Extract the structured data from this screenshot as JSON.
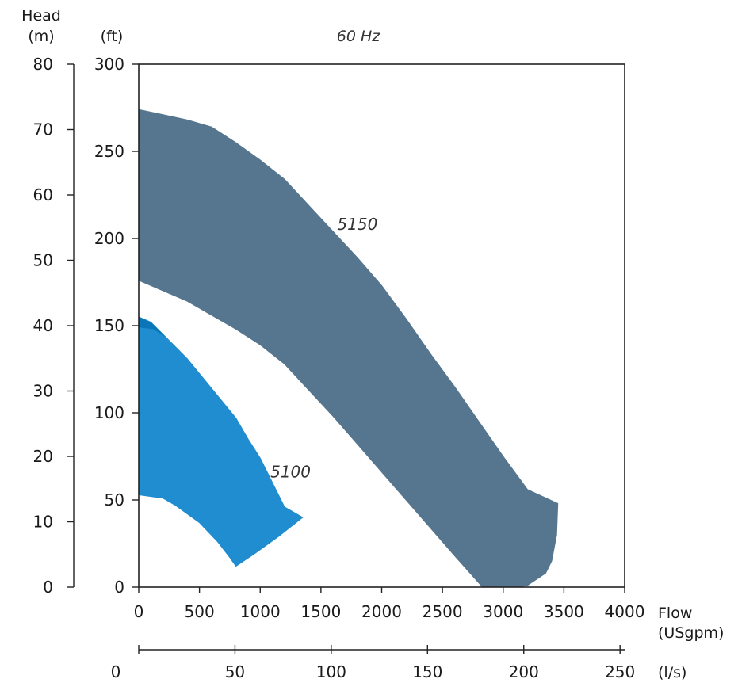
{
  "chart_data": {
    "type": "area",
    "title": "60 Hz",
    "y_label_head": "Head",
    "y_unit_m": "(m)",
    "y_unit_ft": "(ft)",
    "x_label": "Flow",
    "x_unit_usgpm": "(USgpm)",
    "x_unit_ls": "(l/s)",
    "xlim_usgpm": [
      0,
      4000
    ],
    "ylim_ft": [
      0,
      300
    ],
    "ylim_m": [
      0,
      80
    ],
    "xlim_ls": [
      0,
      252.4
    ],
    "x_ticks_usgpm": [
      "0",
      "500",
      "1000",
      "1500",
      "2000",
      "2500",
      "3000",
      "3500",
      "4000"
    ],
    "y_ticks_ft": [
      "0",
      "50",
      "100",
      "150",
      "200",
      "250",
      "300"
    ],
    "y_ticks_m": [
      "0",
      "10",
      "20",
      "30",
      "40",
      "50",
      "60",
      "70",
      "80"
    ],
    "x_ticks_ls": [
      "0",
      "50",
      "100",
      "150",
      "200",
      "250"
    ],
    "grid": false,
    "series": [
      {
        "name": "5150",
        "color": "#55768e",
        "upper": [
          [
            0,
            274
          ],
          [
            200,
            271
          ],
          [
            400,
            268
          ],
          [
            600,
            264
          ],
          [
            800,
            255
          ],
          [
            1000,
            245
          ],
          [
            1200,
            234
          ],
          [
            1400,
            219
          ],
          [
            1600,
            204
          ],
          [
            1800,
            189
          ],
          [
            2000,
            173
          ],
          [
            2200,
            154
          ],
          [
            2400,
            134
          ],
          [
            2600,
            115
          ],
          [
            2800,
            95
          ],
          [
            3000,
            75
          ],
          [
            3200,
            56
          ],
          [
            3450,
            48
          ]
        ],
        "right_edge": [
          [
            3450,
            48
          ],
          [
            3440,
            30
          ],
          [
            3400,
            15
          ],
          [
            3350,
            8
          ],
          [
            3200,
            1
          ],
          [
            3130,
            0
          ]
        ],
        "lower": [
          [
            2830,
            0
          ],
          [
            2600,
            18
          ],
          [
            2400,
            34
          ],
          [
            2200,
            50
          ],
          [
            2000,
            66
          ],
          [
            1800,
            82
          ],
          [
            1600,
            98
          ],
          [
            1400,
            113
          ],
          [
            1200,
            128
          ],
          [
            1000,
            139
          ],
          [
            800,
            148
          ],
          [
            600,
            156
          ],
          [
            400,
            164
          ],
          [
            200,
            170
          ],
          [
            0,
            176
          ]
        ]
      },
      {
        "name": "5100",
        "color": "#1f8dcf",
        "upper": [
          [
            0,
            155
          ],
          [
            100,
            152
          ],
          [
            200,
            145
          ],
          [
            300,
            138
          ],
          [
            400,
            131
          ],
          [
            600,
            114
          ],
          [
            800,
            97
          ],
          [
            900,
            85
          ],
          [
            1000,
            74
          ],
          [
            1100,
            60
          ],
          [
            1200,
            46
          ],
          [
            1350,
            40
          ]
        ],
        "lower": [
          [
            1350,
            40
          ],
          [
            1150,
            29
          ],
          [
            950,
            19
          ],
          [
            800,
            12
          ],
          [
            750,
            17
          ],
          [
            650,
            26
          ],
          [
            500,
            37
          ],
          [
            300,
            47
          ],
          [
            200,
            51
          ],
          [
            100,
            52
          ],
          [
            0,
            53
          ]
        ],
        "overlap_color": "#0a76b8",
        "overlap": [
          [
            0,
            155
          ],
          [
            100,
            152
          ],
          [
            200,
            145
          ],
          [
            230,
            143
          ],
          [
            120,
            148
          ],
          [
            0,
            149
          ]
        ]
      }
    ],
    "annotations": [
      {
        "text": "5150",
        "x": 1800,
        "y": 205
      },
      {
        "text": "5100",
        "x": 1250,
        "y": 63
      }
    ]
  }
}
